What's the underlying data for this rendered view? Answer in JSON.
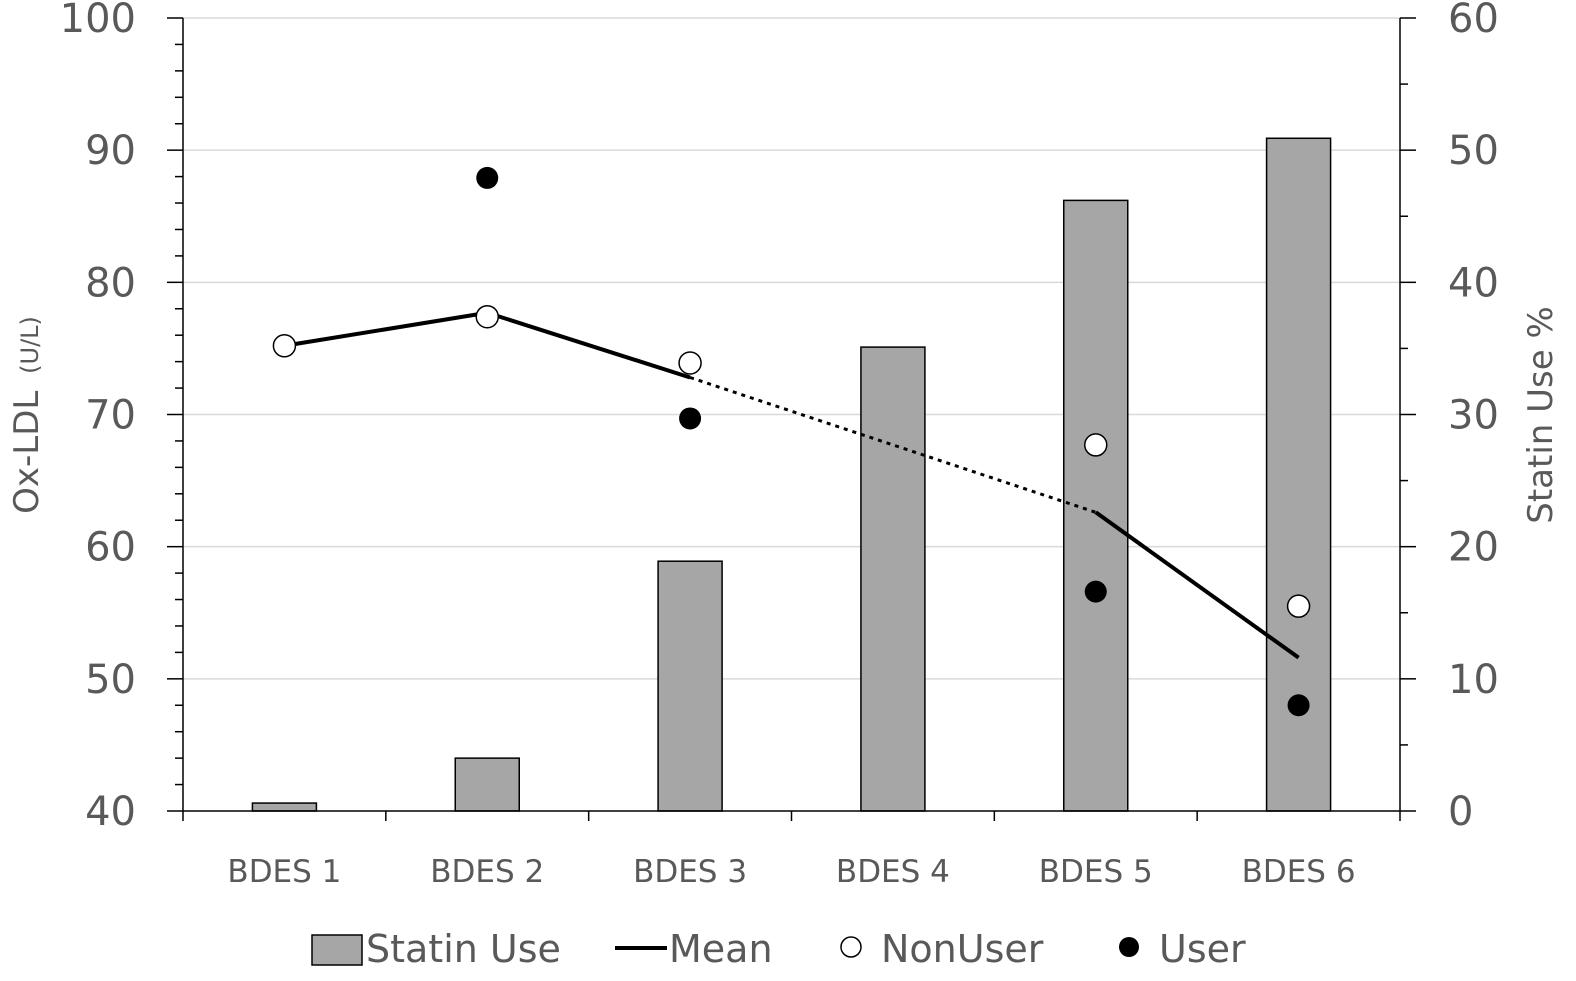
{
  "chart_data": {
    "type": "bar",
    "title": "",
    "categories": [
      "BDES 1",
      "BDES 2",
      "BDES 3",
      "BDES 4",
      "BDES 5",
      "BDES 6"
    ],
    "y_left": {
      "label_main": "Ox-LDL",
      "label_unit": "(U/L)",
      "range": [
        40,
        100
      ],
      "major_ticks": [
        40,
        50,
        60,
        70,
        80,
        90,
        100
      ],
      "minor_step": 2
    },
    "y_right": {
      "label": "Statin Use %",
      "range": [
        0,
        60
      ],
      "major_ticks": [
        0,
        10,
        20,
        30,
        40,
        50,
        60
      ],
      "minor_step": 5
    },
    "grid": true,
    "legend_position": "bottom",
    "series": [
      {
        "name": "Statin Use",
        "kind": "bar",
        "axis": "right",
        "color": "#a6a6a6",
        "values": [
          0.6,
          4.0,
          18.9,
          35.1,
          46.2,
          50.9
        ]
      },
      {
        "name": "Mean",
        "kind": "line",
        "axis": "left",
        "color": "#000000",
        "values": [
          75.2,
          77.7,
          72.8,
          null,
          62.6,
          51.6
        ],
        "segments": [
          {
            "from": 0,
            "to": 1,
            "style": "solid"
          },
          {
            "from": 1,
            "to": 2,
            "style": "solid"
          },
          {
            "from": 2,
            "to": 4,
            "style": "dotted"
          },
          {
            "from": 4,
            "to": 5,
            "style": "solid"
          }
        ]
      },
      {
        "name": "NonUser",
        "kind": "scatter",
        "axis": "left",
        "marker": "open-circle",
        "values": [
          75.2,
          77.4,
          73.9,
          null,
          67.7,
          55.5
        ]
      },
      {
        "name": "User",
        "kind": "scatter",
        "axis": "left",
        "marker": "filled-circle",
        "values": [
          null,
          87.9,
          69.7,
          null,
          56.6,
          48.0
        ]
      }
    ]
  }
}
